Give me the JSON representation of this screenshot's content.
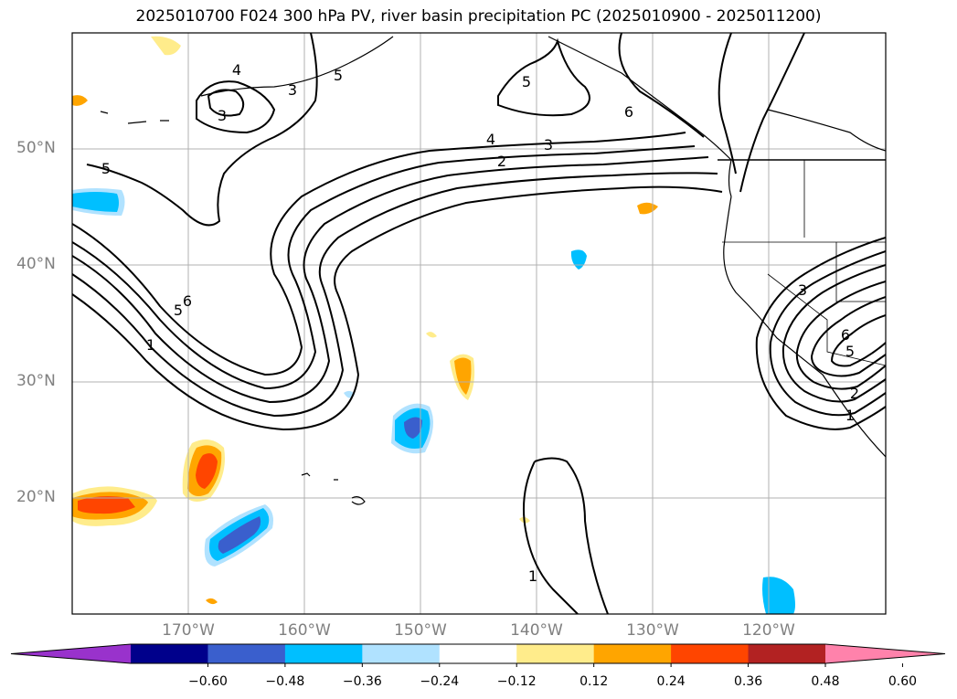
{
  "title": "2025010700 F024 300 hPa PV, river basin precipitation PC (2025010900 - 2025011200)",
  "lat_labels": [
    "50°N",
    "40°N",
    "30°N",
    "20°N"
  ],
  "lon_labels": [
    "170°W",
    "160°W",
    "150°W",
    "140°W",
    "130°W",
    "120°W"
  ],
  "contour_labels": [
    "4",
    "3",
    "5",
    "6",
    "3",
    "5",
    "4",
    "3",
    "2",
    "5",
    "6",
    "5",
    "1",
    "3",
    "6",
    "5",
    "2",
    "1",
    "1"
  ],
  "colorbar": {
    "ticks": [
      "−0.60",
      "−0.48",
      "−0.36",
      "−0.24",
      "−0.12",
      "0.12",
      "0.24",
      "0.36",
      "0.48",
      "0.60"
    ],
    "colors": [
      "#9932cc",
      "#00008b",
      "#3a5fcd",
      "#00bfff",
      "#b0e2ff",
      "#ffffff",
      "#ffec8b",
      "#ffa500",
      "#ff4500",
      "#b22222",
      "#ff82ab"
    ]
  }
}
